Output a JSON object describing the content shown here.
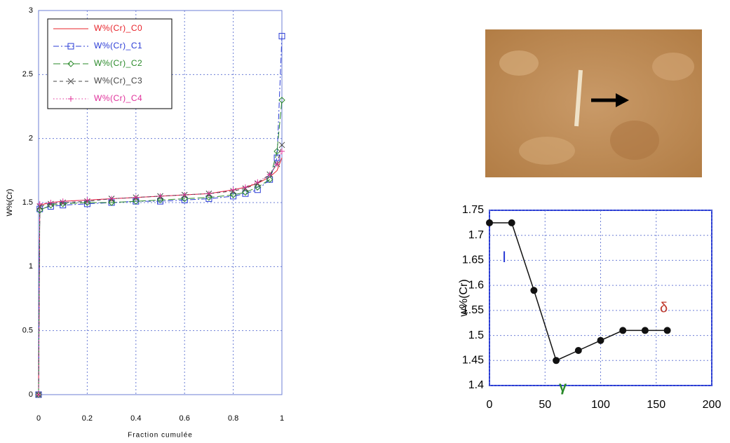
{
  "chart_data": [
    {
      "type": "line",
      "xlabel": "Fraction cumulée",
      "ylabel": "W%(Cr)",
      "x": [
        0,
        0.005,
        0.05,
        0.1,
        0.2,
        0.3,
        0.4,
        0.5,
        0.6,
        0.7,
        0.8,
        0.85,
        0.9,
        0.95,
        0.98,
        1
      ],
      "xlim": [
        0,
        1
      ],
      "xticks": [
        0,
        0.2,
        0.4,
        0.6,
        0.8,
        1
      ],
      "ylim": [
        0,
        3
      ],
      "yticks": [
        0,
        0.5,
        1,
        1.5,
        2,
        2.5,
        3
      ],
      "grid": true,
      "legend": "upper left",
      "series": [
        {
          "name": "W%(Cr)_C0",
          "color": "#e8232b",
          "marker": "none",
          "linestyle": "solid",
          "values": [
            0,
            1.48,
            1.5,
            1.51,
            1.52,
            1.53,
            1.54,
            1.55,
            1.56,
            1.57,
            1.6,
            1.62,
            1.65,
            1.7,
            1.75,
            1.85
          ]
        },
        {
          "name": "W%(Cr)_C1",
          "color": "#2b3cd6",
          "marker": "square",
          "linestyle": "dashdot",
          "values": [
            0,
            1.45,
            1.47,
            1.48,
            1.49,
            1.5,
            1.51,
            1.51,
            1.52,
            1.53,
            1.55,
            1.57,
            1.6,
            1.68,
            1.85,
            2.8
          ]
        },
        {
          "name": "W%(Cr)_C2",
          "color": "#2a8a2a",
          "marker": "diamond",
          "linestyle": "dash",
          "values": [
            0,
            1.44,
            1.48,
            1.49,
            1.5,
            1.5,
            1.51,
            1.52,
            1.53,
            1.54,
            1.56,
            1.58,
            1.62,
            1.68,
            1.9,
            2.3
          ]
        },
        {
          "name": "W%(Cr)_C3",
          "color": "#444444",
          "marker": "x",
          "linestyle": "dashed",
          "values": [
            0,
            1.47,
            1.49,
            1.5,
            1.51,
            1.53,
            1.54,
            1.55,
            1.56,
            1.57,
            1.59,
            1.61,
            1.65,
            1.72,
            1.8,
            1.95
          ]
        },
        {
          "name": "W%(Cr)_C4",
          "color": "#e0309a",
          "marker": "plus",
          "linestyle": "dotted",
          "values": [
            0,
            1.49,
            1.5,
            1.51,
            1.52,
            1.53,
            1.54,
            1.55,
            1.56,
            1.57,
            1.6,
            1.62,
            1.66,
            1.72,
            1.8,
            1.9
          ]
        }
      ]
    },
    {
      "type": "line",
      "ylabel": "w%(Cr)",
      "x": [
        0,
        20,
        40,
        60,
        80,
        100,
        120,
        140,
        160
      ],
      "values": [
        1.725,
        1.725,
        1.59,
        1.45,
        1.47,
        1.49,
        1.51,
        1.51,
        1.51
      ],
      "color": "#111111",
      "marker": "circle",
      "linestyle": "solid",
      "xlim": [
        0,
        200
      ],
      "xticks": [
        0,
        50,
        100,
        150,
        200
      ],
      "ylim": [
        1.4,
        1.75
      ],
      "yticks": [
        1.4,
        1.45,
        1.5,
        1.55,
        1.6,
        1.65,
        1.7,
        1.75
      ],
      "grid": true,
      "annotations": [
        "I",
        "γ",
        "δ"
      ]
    }
  ]
}
